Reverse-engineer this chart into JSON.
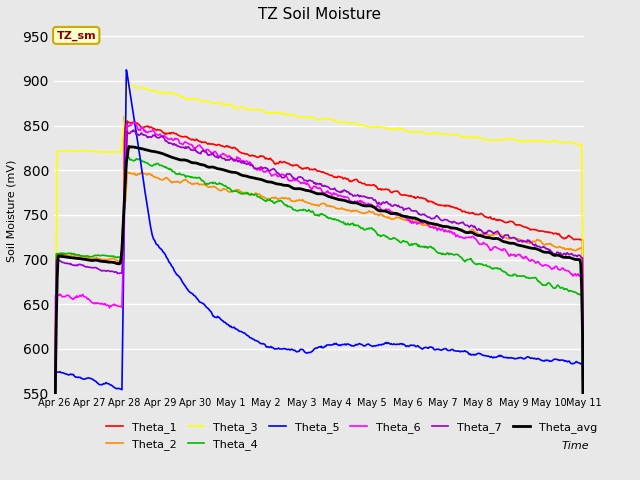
{
  "title": "TZ Soil Moisture",
  "ylabel": "Soil Moisture (mV)",
  "xlabel": "Time",
  "legend_label": "TZ_sm",
  "ylim": [
    550,
    960
  ],
  "yticks": [
    550,
    600,
    650,
    700,
    750,
    800,
    850,
    900,
    950
  ],
  "xlim": [
    0,
    360
  ],
  "spike_day": 48,
  "series_colors": {
    "Theta_1": "#ff0000",
    "Theta_2": "#ff8c00",
    "Theta_3": "#ffff00",
    "Theta_4": "#00bb00",
    "Theta_5": "#0000ff",
    "Theta_6": "#ff00ff",
    "Theta_7": "#9900cc",
    "Theta_avg": "#000000"
  },
  "fig_facecolor": "#e8e8e8",
  "ax_facecolor": "#e8e8e8",
  "legend_box_facecolor": "#ffffcc",
  "legend_box_edgecolor": "#ccaa00",
  "legend_text_color": "#880000",
  "grid_color": "#ffffff",
  "linewidth": 1.2,
  "avg_linewidth": 2.0
}
